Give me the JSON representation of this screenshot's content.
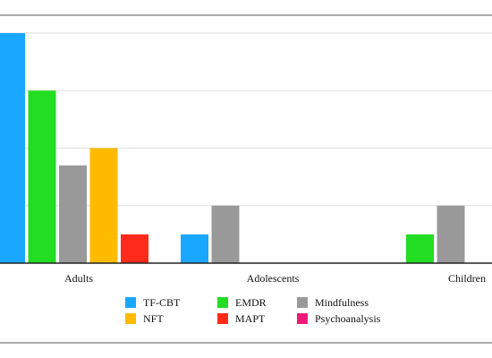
{
  "chart_data": {
    "type": "bar",
    "categories": [
      "Adults",
      "Adolescents",
      "Children"
    ],
    "series": [
      {
        "name": "TF-CBT",
        "color": "#1aa7ff",
        "values": [
          8.0,
          1.0,
          null
        ]
      },
      {
        "name": "EMDR",
        "color": "#22dd22",
        "values": [
          6.0,
          null,
          1.0
        ]
      },
      {
        "name": "Mindfulness",
        "color": "#999999",
        "values": [
          3.4,
          2.0,
          2.0
        ]
      },
      {
        "name": "NFT",
        "color": "#ffbb00",
        "values": [
          4.0,
          null,
          null
        ]
      },
      {
        "name": "MAPT",
        "color": "#ff2a1a",
        "values": [
          1.0,
          null,
          null
        ]
      },
      {
        "name": "Psychoanalysis",
        "color": "#ee1a7a",
        "values": [
          null,
          null,
          null
        ]
      }
    ],
    "ylim": [
      0,
      8
    ],
    "grid": true,
    "legend_position": "bottom"
  }
}
